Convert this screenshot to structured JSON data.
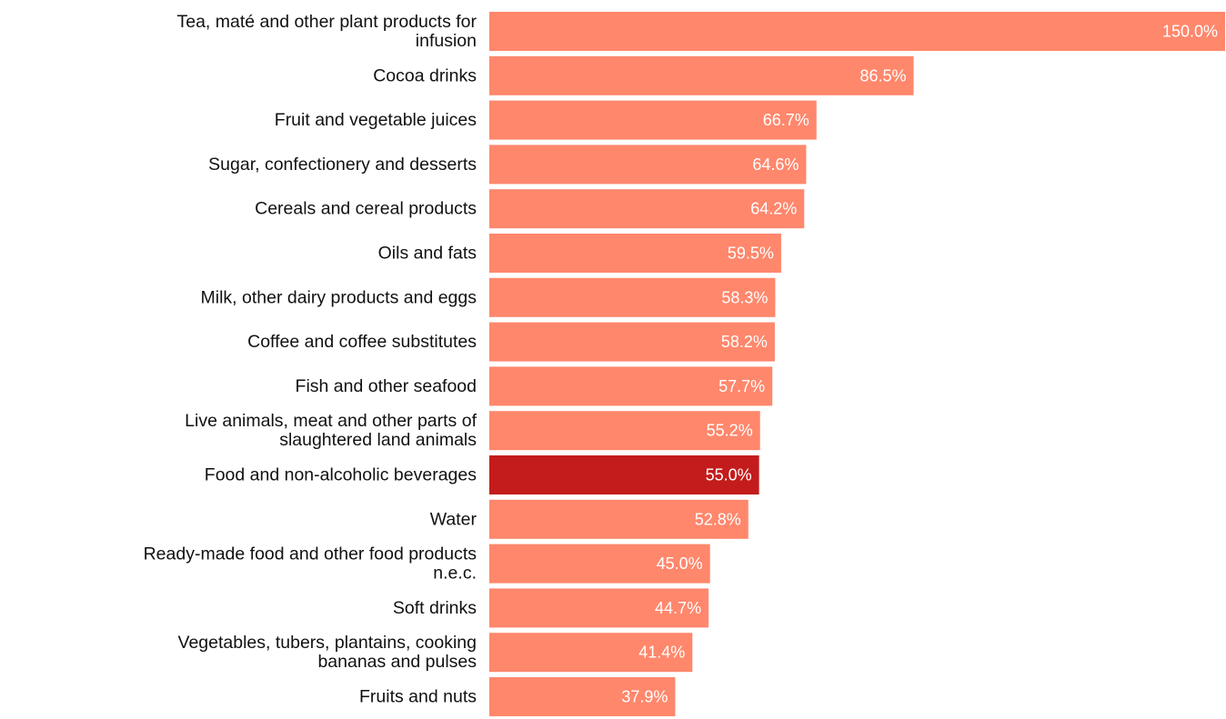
{
  "colors": {
    "bar": "#ff876c",
    "highlight": "#c41c1c",
    "label_text": "#111111",
    "value_text": "#ffffff"
  },
  "chart_data": {
    "type": "bar",
    "orientation": "horizontal",
    "title": "",
    "xlabel": "",
    "ylabel": "",
    "xlim": [
      0,
      150
    ],
    "grid": false,
    "legend": "none",
    "value_suffix": "%",
    "highlight_category": "Food and non-alcoholic beverages",
    "categories": [
      [
        "Tea, maté and other plant products for",
        "infusion"
      ],
      [
        "Cocoa drinks"
      ],
      [
        "Fruit and vegetable juices"
      ],
      [
        "Sugar, confectionery and desserts"
      ],
      [
        "Cereals and cereal products"
      ],
      [
        "Oils and fats"
      ],
      [
        "Milk, other dairy products and eggs"
      ],
      [
        "Coffee and coffee substitutes"
      ],
      [
        "Fish and other seafood"
      ],
      [
        "Live animals, meat and other parts of",
        "slaughtered land animals"
      ],
      [
        "Food and non-alcoholic beverages"
      ],
      [
        "Water"
      ],
      [
        "Ready-made food and other food products",
        "n.e.c."
      ],
      [
        "Soft drinks"
      ],
      [
        "Vegetables, tubers, plantains, cooking",
        "bananas and pulses"
      ],
      [
        "Fruits and nuts"
      ]
    ],
    "values": [
      150.0,
      86.5,
      66.7,
      64.6,
      64.2,
      59.5,
      58.3,
      58.2,
      57.7,
      55.2,
      55.0,
      52.8,
      45.0,
      44.7,
      41.4,
      37.9
    ],
    "value_labels": [
      "150.0%",
      "86.5%",
      "66.7%",
      "64.6%",
      "64.2%",
      "59.5%",
      "58.3%",
      "58.2%",
      "57.7%",
      "55.2%",
      "55.0%",
      "52.8%",
      "45.0%",
      "44.7%",
      "41.4%",
      "37.9%"
    ]
  }
}
